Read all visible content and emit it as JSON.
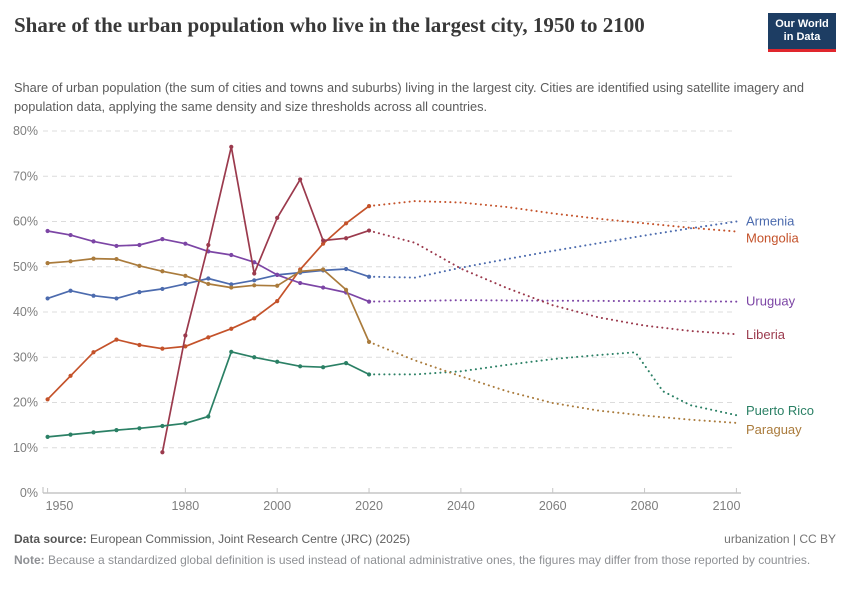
{
  "header": {
    "title": "Share of the urban population who live in the largest city, 1950 to 2100",
    "subtitle": "Share of urban population (the sum of cities and towns and suburbs) living in the largest city. Cities are identified using satellite imagery and population data, applying the same density and size thresholds across all countries.",
    "logo": {
      "line1": "Our World",
      "line2": "in Data",
      "bg": "#1D3D63",
      "stripe": "#E0262D"
    }
  },
  "footer": {
    "datasource_label": "Data source:",
    "datasource": " European Commission, Joint Research Centre (JRC) (2025)",
    "right": "urbanization | CC BY",
    "note_label": "Note:",
    "note": " Because a standardized global definition is used instead of national administrative ones, the figures may differ from those reported by countries."
  },
  "chart_data": {
    "type": "line",
    "title": "Share of the urban population who live in the largest city, 1950 to 2100",
    "unit": "%",
    "x_range": [
      1949,
      2101
    ],
    "y_range": [
      0,
      80
    ],
    "x_ticks": [
      1950,
      1980,
      2000,
      2020,
      2040,
      2060,
      2080,
      2100
    ],
    "y_ticks": [
      0,
      10,
      20,
      30,
      40,
      50,
      60,
      70,
      80
    ],
    "grid": "dashed-horizontal",
    "legend_position": "right-edge-labels",
    "projection_start": 2020,
    "projection_style": "dotted",
    "series": [
      {
        "name": "Armenia",
        "color": "#4C6BAE",
        "label_dy": 0,
        "points": [
          [
            1950,
            43
          ],
          [
            1955,
            44.7
          ],
          [
            1960,
            43.6
          ],
          [
            1965,
            43
          ],
          [
            1970,
            44.4
          ],
          [
            1975,
            45.1
          ],
          [
            1980,
            46.2
          ],
          [
            1985,
            47.4
          ],
          [
            1990,
            46.1
          ],
          [
            1995,
            47
          ],
          [
            2000,
            48.2
          ],
          [
            2005,
            48.7
          ],
          [
            2010,
            49.2
          ],
          [
            2015,
            49.5
          ],
          [
            2020,
            47.8
          ]
        ],
        "projection": [
          [
            2020,
            47.8
          ],
          [
            2030,
            47.6
          ],
          [
            2040,
            49.8
          ],
          [
            2050,
            51.7
          ],
          [
            2060,
            53.5
          ],
          [
            2070,
            55.2
          ],
          [
            2080,
            56.9
          ],
          [
            2090,
            58.5
          ],
          [
            2100,
            60
          ]
        ]
      },
      {
        "name": "Mongolia",
        "color": "#C4522A",
        "label_dy": 7,
        "points": [
          [
            1950,
            20.7
          ],
          [
            1955,
            25.9
          ],
          [
            1960,
            31.1
          ],
          [
            1965,
            33.9
          ],
          [
            1970,
            32.7
          ],
          [
            1975,
            31.9
          ],
          [
            1980,
            32.4
          ],
          [
            1985,
            34.4
          ],
          [
            1990,
            36.3
          ],
          [
            1995,
            38.6
          ],
          [
            2000,
            42.4
          ],
          [
            2005,
            49.4
          ],
          [
            2010,
            55.1
          ],
          [
            2015,
            59.6
          ],
          [
            2020,
            63.4
          ]
        ],
        "projection": [
          [
            2020,
            63.4
          ],
          [
            2030,
            64.5
          ],
          [
            2040,
            64.2
          ],
          [
            2050,
            63.2
          ],
          [
            2060,
            61.8
          ],
          [
            2070,
            60.6
          ],
          [
            2080,
            59.6
          ],
          [
            2090,
            58.6
          ],
          [
            2100,
            57.8
          ]
        ]
      },
      {
        "name": "Uruguay",
        "color": "#7C45A5",
        "label_dy": 0,
        "points": [
          [
            1950,
            57.9
          ],
          [
            1955,
            57
          ],
          [
            1960,
            55.6
          ],
          [
            1965,
            54.6
          ],
          [
            1970,
            54.8
          ],
          [
            1975,
            56.1
          ],
          [
            1980,
            55.1
          ],
          [
            1985,
            53.4
          ],
          [
            1990,
            52.6
          ],
          [
            1995,
            51
          ],
          [
            2000,
            48.2
          ],
          [
            2005,
            46.4
          ],
          [
            2010,
            45.4
          ],
          [
            2015,
            44.3
          ],
          [
            2020,
            42.3
          ]
        ],
        "projection": [
          [
            2020,
            42.3
          ],
          [
            2040,
            42.6
          ],
          [
            2060,
            42.5
          ],
          [
            2080,
            42.4
          ],
          [
            2100,
            42.3
          ]
        ]
      },
      {
        "name": "Liberia",
        "color": "#9B3A4D",
        "label_dy": 1,
        "points": [
          [
            1975,
            9
          ],
          [
            1980,
            34.8
          ],
          [
            1985,
            54.8
          ],
          [
            1990,
            76.5
          ],
          [
            1995,
            48.5
          ],
          [
            2000,
            60.8
          ],
          [
            2005,
            69.3
          ],
          [
            2010,
            55.8
          ],
          [
            2015,
            56.3
          ],
          [
            2020,
            58
          ]
        ],
        "projection": [
          [
            2020,
            58
          ],
          [
            2030,
            55.3
          ],
          [
            2040,
            49.6
          ],
          [
            2050,
            45.3
          ],
          [
            2060,
            41.5
          ],
          [
            2070,
            38.8
          ],
          [
            2080,
            37
          ],
          [
            2090,
            35.8
          ],
          [
            2100,
            35.1
          ]
        ]
      },
      {
        "name": "Puerto Rico",
        "color": "#2B8065",
        "label_dy": -4,
        "points": [
          [
            1950,
            12.4
          ],
          [
            1955,
            12.9
          ],
          [
            1960,
            13.4
          ],
          [
            1965,
            13.9
          ],
          [
            1970,
            14.3
          ],
          [
            1975,
            14.8
          ],
          [
            1980,
            15.4
          ],
          [
            1985,
            16.9
          ],
          [
            1990,
            31.2
          ],
          [
            1995,
            30
          ],
          [
            2000,
            29
          ],
          [
            2005,
            28
          ],
          [
            2010,
            27.8
          ],
          [
            2015,
            28.7
          ],
          [
            2020,
            26.2
          ]
        ],
        "projection": [
          [
            2020,
            26.2
          ],
          [
            2030,
            26.2
          ],
          [
            2040,
            26.9
          ],
          [
            2050,
            28.3
          ],
          [
            2060,
            29.6
          ],
          [
            2070,
            30.5
          ],
          [
            2078,
            31.1
          ],
          [
            2084,
            22.5
          ],
          [
            2090,
            19.4
          ],
          [
            2100,
            17.2
          ]
        ]
      },
      {
        "name": "Paraguay",
        "color": "#AA7B3C",
        "label_dy": 7,
        "points": [
          [
            1950,
            50.8
          ],
          [
            1955,
            51.2
          ],
          [
            1960,
            51.8
          ],
          [
            1965,
            51.7
          ],
          [
            1970,
            50.2
          ],
          [
            1975,
            49
          ],
          [
            1980,
            48
          ],
          [
            1985,
            46.2
          ],
          [
            1990,
            45.4
          ],
          [
            1995,
            45.9
          ],
          [
            2000,
            45.8
          ],
          [
            2005,
            49
          ],
          [
            2010,
            49.4
          ],
          [
            2015,
            44.9
          ],
          [
            2020,
            33.4
          ]
        ],
        "projection": [
          [
            2020,
            33.4
          ],
          [
            2030,
            29.3
          ],
          [
            2040,
            25.8
          ],
          [
            2050,
            22.5
          ],
          [
            2060,
            19.9
          ],
          [
            2070,
            18.2
          ],
          [
            2080,
            17.1
          ],
          [
            2090,
            16.2
          ],
          [
            2100,
            15.5
          ]
        ]
      }
    ]
  }
}
